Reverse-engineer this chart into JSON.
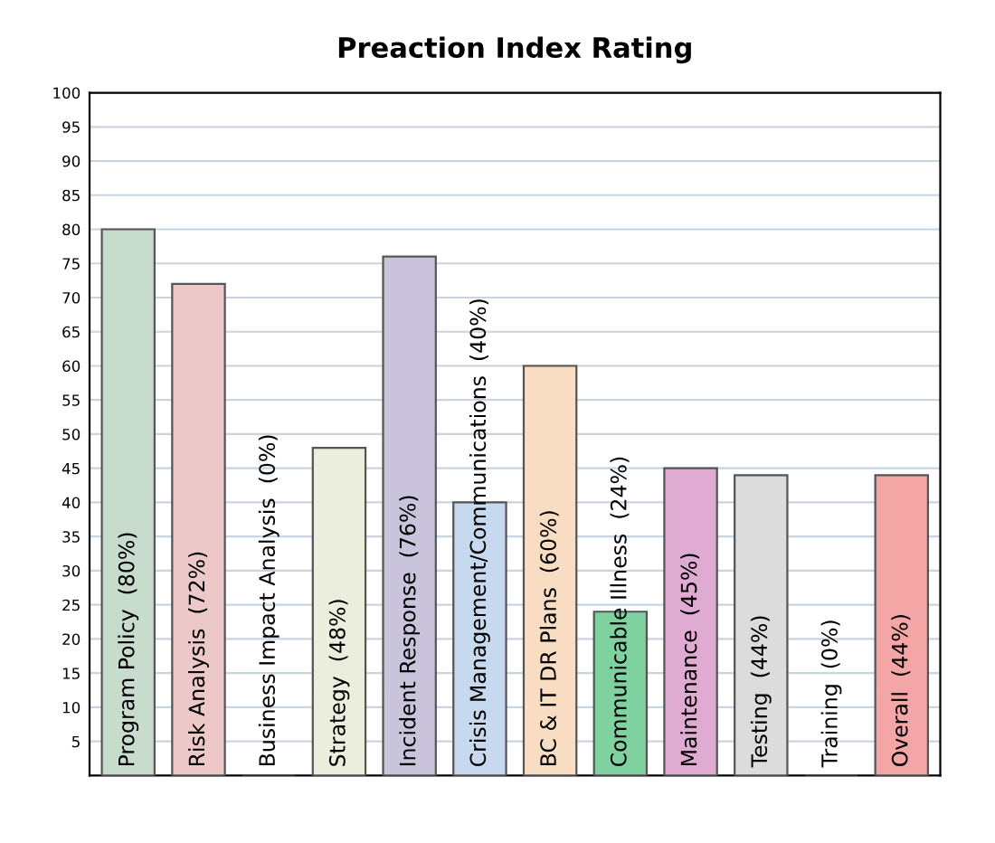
{
  "chart_data": {
    "type": "bar",
    "title": "Preaction Index Rating",
    "categories": [
      "Program Policy  (80%)",
      "Risk Analysis  (72%)",
      "Business Impact Analysis  (0%)",
      "Strategy  (48%)",
      "Incident Response  (76%)",
      "Crisis Management/Communications  (40%)",
      "BC & IT DR Plans  (60%)",
      "Communicable Illness  (24%)",
      "Maintenance  (45%)",
      "Testing  (44%)",
      "Training  (0%)",
      "Overall  (44%)"
    ],
    "values": [
      80,
      72,
      0,
      48,
      76,
      40,
      60,
      24,
      45,
      44,
      0,
      44
    ],
    "colors": [
      "#c8dccd",
      "#ecc8c8",
      "#555555",
      "#eceedd",
      "#c9c4dc",
      "#c6d9ef",
      "#f9ddc2",
      "#7fd1a0",
      "#e0abd2",
      "#dcdcdc",
      "#555555",
      "#f4a5a5"
    ],
    "ylim": [
      0,
      100
    ],
    "yticks": [
      5,
      10,
      15,
      20,
      25,
      30,
      35,
      40,
      45,
      50,
      55,
      60,
      65,
      70,
      75,
      80,
      85,
      90,
      95,
      100
    ],
    "grid": "y",
    "legend": false
  }
}
